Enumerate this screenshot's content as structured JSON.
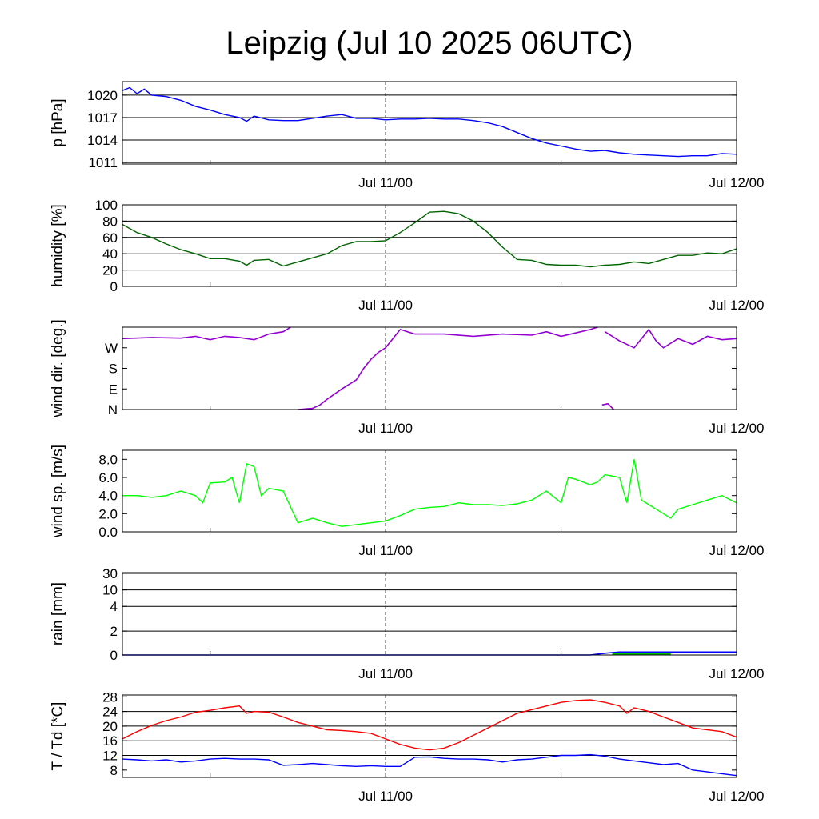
{
  "title": "Leipzig (Jul 10 2025 06UTC)",
  "x_tick_labels": [
    "Jul 11/00",
    "Jul 12/00"
  ],
  "chart_data": [
    {
      "type": "line",
      "name": "pressure",
      "ylabel": "p [hPa]",
      "ylim": [
        1010.8,
        1021.8
      ],
      "yticks": [
        1011,
        1014,
        1017,
        1020
      ],
      "ytick_labels": [
        "1011",
        "1014",
        "1017",
        "1020"
      ],
      "grid": [
        1011,
        1014,
        1017,
        1020
      ],
      "x_range_hours": [
        0,
        42
      ],
      "color": "#0000ff",
      "series": [
        {
          "x": [
            0,
            0.5,
            1,
            1.5,
            2,
            3,
            4,
            5,
            6,
            7,
            8,
            8.5,
            9,
            10,
            11,
            12,
            13,
            14,
            15,
            16,
            17,
            18,
            19,
            20,
            21,
            22,
            23,
            24,
            25,
            26,
            27,
            28,
            29,
            30,
            31,
            32,
            33,
            34,
            35,
            36,
            37,
            38,
            39,
            40,
            41,
            42
          ],
          "y": [
            1020.6,
            1021.0,
            1020.2,
            1020.8,
            1020.0,
            1019.8,
            1019.3,
            1018.5,
            1018.0,
            1017.4,
            1017.0,
            1016.5,
            1017.2,
            1016.7,
            1016.6,
            1016.6,
            1016.9,
            1017.2,
            1017.4,
            1016.9,
            1016.9,
            1016.7,
            1016.8,
            1016.8,
            1016.9,
            1016.8,
            1016.8,
            1016.6,
            1016.3,
            1015.8,
            1015.0,
            1014.2,
            1013.6,
            1013.2,
            1012.8,
            1012.5,
            1012.6,
            1012.3,
            1012.1,
            1012.0,
            1011.9,
            1011.8,
            1011.9,
            1011.9,
            1012.2,
            1012.1
          ]
        }
      ]
    },
    {
      "type": "line",
      "name": "humidity",
      "ylabel": "humidity [%]",
      "ylim": [
        0,
        100
      ],
      "yticks": [
        0,
        20,
        40,
        60,
        80,
        100
      ],
      "ytick_labels": [
        "0",
        "20",
        "40",
        "60",
        "80",
        "100"
      ],
      "grid": [
        20,
        40,
        60,
        80
      ],
      "x_range_hours": [
        0,
        42
      ],
      "color": "#006400",
      "series": [
        {
          "x": [
            0,
            1,
            2,
            3,
            4,
            5,
            6,
            7,
            8,
            8.5,
            9,
            10,
            11,
            12,
            13,
            14,
            15,
            16,
            17,
            18,
            19,
            20,
            21,
            22,
            23,
            24,
            25,
            26,
            27,
            28,
            29,
            30,
            31,
            32,
            33,
            34,
            35,
            36,
            37,
            38,
            39,
            40,
            41,
            42
          ],
          "y": [
            76,
            66,
            60,
            52,
            45,
            40,
            34,
            34,
            31,
            26,
            32,
            33,
            25,
            30,
            35,
            40,
            50,
            55,
            55,
            56,
            66,
            78,
            91,
            92,
            89,
            80,
            66,
            48,
            33,
            32,
            27,
            26,
            26,
            24,
            26,
            27,
            30,
            28,
            33,
            38,
            38,
            41,
            40,
            46
          ]
        }
      ]
    },
    {
      "type": "line",
      "name": "wind direction",
      "ylabel": "wind dir. [deg.]",
      "ylim": [
        0,
        360
      ],
      "yticks": [
        0,
        90,
        180,
        270
      ],
      "ytick_labels": [
        "N",
        "E",
        "S",
        "W"
      ],
      "grid": [],
      "x_range_hours": [
        0,
        42
      ],
      "color": "#9400d3",
      "segments": [
        {
          "x": [
            0,
            2,
            4,
            5,
            6,
            7,
            8,
            9,
            10,
            11,
            11.5
          ],
          "y": [
            310,
            315,
            312,
            320,
            305,
            320,
            315,
            305,
            330,
            340,
            360
          ]
        },
        {
          "x": [
            12,
            13,
            13.5,
            14,
            15,
            16,
            16.5,
            17,
            17.5,
            18
          ],
          "y": [
            0,
            5,
            20,
            45,
            90,
            130,
            180,
            220,
            250,
            270
          ]
        },
        {
          "x": [
            18,
            18.5,
            19,
            20,
            21,
            22,
            24,
            26,
            28,
            29,
            30,
            31,
            32,
            32.5
          ],
          "y": [
            270,
            310,
            350,
            330,
            330,
            330,
            320,
            330,
            325,
            340,
            320,
            335,
            350,
            360
          ]
        },
        {
          "x": [
            33,
            34,
            35,
            36,
            36.5,
            37,
            38,
            39,
            40,
            41,
            42
          ],
          "y": [
            340,
            300,
            270,
            350,
            300,
            270,
            310,
            285,
            320,
            305,
            310
          ]
        },
        {
          "x": [
            32.8,
            33.2,
            33.6
          ],
          "y": [
            20,
            25,
            0
          ]
        }
      ]
    },
    {
      "type": "line",
      "name": "wind speed",
      "ylabel": "wind sp. [m/s]",
      "ylim": [
        0,
        9
      ],
      "yticks": [
        0,
        2,
        4,
        6,
        8
      ],
      "ytick_labels": [
        "0.0",
        "2.0",
        "4.0",
        "6.0",
        "8.0"
      ],
      "grid": [],
      "x_range_hours": [
        0,
        42
      ],
      "color": "#00ff00",
      "series": [
        {
          "x": [
            0,
            1,
            2,
            3,
            4,
            5,
            5.5,
            6,
            7,
            7.5,
            8,
            8.5,
            9,
            9.5,
            10,
            11,
            12,
            13,
            14,
            15,
            16,
            17,
            18,
            19,
            20,
            21,
            22,
            23,
            24,
            25,
            26,
            27,
            28,
            29,
            30,
            30.5,
            31,
            32,
            32.5,
            33,
            34,
            34.5,
            35,
            35.5,
            36,
            36.5,
            37,
            37.5,
            38,
            39,
            40,
            41,
            42
          ],
          "y": [
            4.0,
            4.0,
            3.8,
            4.0,
            4.5,
            4.0,
            3.2,
            5.4,
            5.5,
            6.0,
            3.2,
            7.5,
            7.2,
            4.0,
            4.8,
            4.5,
            1.0,
            1.5,
            1.0,
            0.6,
            0.8,
            1.0,
            1.2,
            1.8,
            2.5,
            2.7,
            2.8,
            3.2,
            3.0,
            3.0,
            2.9,
            3.1,
            3.5,
            4.5,
            3.2,
            6.0,
            5.8,
            5.2,
            5.5,
            6.3,
            6.0,
            3.2,
            8.0,
            3.5,
            3.0,
            2.5,
            2.0,
            1.5,
            2.5,
            3.0,
            3.5,
            4.0,
            3.2
          ]
        }
      ]
    },
    {
      "type": "area",
      "name": "rain",
      "ylabel": "rain [mm]",
      "scale": "nonlinear",
      "ylim": [
        0,
        30
      ],
      "yticks": [
        0,
        2,
        4,
        10,
        30
      ],
      "ytick_labels": [
        "0",
        "2",
        "4",
        "10",
        "30"
      ],
      "grid": [
        2,
        4,
        10,
        30
      ],
      "x_range_hours": [
        0,
        42
      ],
      "series": [
        {
          "name": "accumulated",
          "color": "#0000ff",
          "x": [
            0,
            32,
            33,
            34,
            42
          ],
          "y": [
            0,
            0,
            0.15,
            0.25,
            0.25
          ]
        },
        {
          "name": "hourly",
          "color": "#00c000",
          "x": [
            33.5,
            37.5
          ],
          "y": [
            0.2,
            0.2
          ]
        }
      ]
    },
    {
      "type": "line",
      "name": "temperature",
      "ylabel": "T / Td [*C]",
      "ylim": [
        6,
        28.5
      ],
      "yticks": [
        8,
        12,
        16,
        20,
        24,
        28
      ],
      "ytick_labels": [
        "8",
        "12",
        "16",
        "20",
        "24",
        "28"
      ],
      "grid": [
        12,
        16,
        20,
        24
      ],
      "x_range_hours": [
        0,
        42
      ],
      "series": [
        {
          "color": "#ff0000",
          "x": [
            0,
            1,
            2,
            3,
            4,
            5,
            6,
            7,
            8,
            8.5,
            9,
            10,
            11,
            12,
            13,
            14,
            15,
            16,
            17,
            18,
            19,
            20,
            21,
            22,
            23,
            24,
            25,
            26,
            27,
            28,
            29,
            30,
            31,
            32,
            33,
            34,
            34.5,
            35,
            36,
            37,
            38,
            39,
            40,
            41,
            42
          ],
          "y": [
            16.5,
            18.5,
            20.2,
            21.5,
            22.5,
            23.8,
            24.3,
            25.0,
            25.5,
            23.5,
            24.0,
            23.8,
            22.5,
            21.0,
            20.0,
            19.0,
            18.8,
            18.5,
            18.0,
            16.5,
            15.0,
            14.0,
            13.5,
            14.0,
            15.5,
            17.5,
            19.5,
            21.5,
            23.5,
            24.5,
            25.5,
            26.5,
            27.0,
            27.2,
            26.5,
            25.5,
            23.5,
            25.0,
            24.0,
            22.5,
            21.0,
            19.5,
            19.0,
            18.5,
            17.0
          ]
        },
        {
          "color": "#0000ff",
          "x": [
            0,
            1,
            2,
            3,
            4,
            5,
            6,
            7,
            8,
            9,
            10,
            11,
            12,
            13,
            14,
            15,
            16,
            17,
            18,
            19,
            20,
            21,
            22,
            23,
            24,
            25,
            26,
            27,
            28,
            29,
            30,
            31,
            32,
            33,
            34,
            35,
            36,
            37,
            38,
            39,
            40,
            41,
            42
          ],
          "y": [
            11.0,
            10.8,
            10.5,
            10.8,
            10.2,
            10.5,
            11.0,
            11.2,
            11.0,
            11.0,
            10.8,
            9.3,
            9.5,
            9.8,
            9.5,
            9.2,
            9.0,
            9.2,
            9.0,
            9.0,
            11.5,
            11.6,
            11.2,
            11.0,
            11.0,
            10.8,
            10.2,
            10.8,
            11.0,
            11.5,
            12.0,
            12.0,
            12.2,
            11.8,
            11.0,
            10.5,
            10.0,
            9.5,
            9.8,
            8.0,
            7.5,
            7.0,
            6.5
          ]
        }
      ]
    }
  ]
}
